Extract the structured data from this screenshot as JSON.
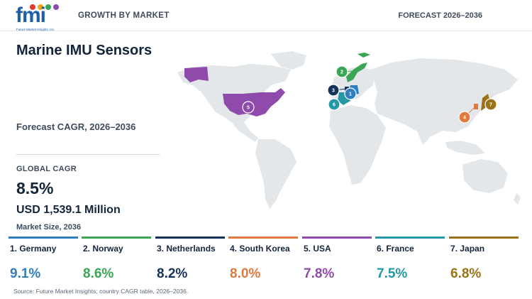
{
  "header": {
    "logo_text": "fmi",
    "logo_tagline": "Future Market Insights, Inc.",
    "section_label": "GROWTH BY MARKET",
    "forecast_label": "FORECAST 2026–2036"
  },
  "report": {
    "title": "Marine IMU Sensors",
    "cagr_label": "Forecast CAGR, 2026–2036",
    "global_label": "GLOBAL CAGR",
    "global_value": "8.5%",
    "market_size": "USD 1,539.1 Million",
    "market_size_label": "Market Size, 2036"
  },
  "colors": {
    "germany": "#2f7fc0",
    "norway": "#3aa655",
    "netherlands": "#15335a",
    "south_korea": "#e07a3c",
    "usa": "#8e4bab",
    "france": "#2498a5",
    "japan": "#9a7318",
    "land": "#e4e7ea"
  },
  "countries": [
    {
      "rank": "1. Germany",
      "pin": "1",
      "value": "9.1%",
      "color_key": "germany"
    },
    {
      "rank": "2. Norway",
      "pin": "2",
      "value": "8.6%",
      "color_key": "norway"
    },
    {
      "rank": "3. Netherlands",
      "pin": "3",
      "value": "8.2%",
      "color_key": "netherlands"
    },
    {
      "rank": "4. South Korea",
      "pin": "4",
      "value": "8.0%",
      "color_key": "south_korea"
    },
    {
      "rank": "5. USA",
      "pin": "5",
      "value": "7.8%",
      "color_key": "usa"
    },
    {
      "rank": "6. France",
      "pin": "6",
      "value": "7.5%",
      "color_key": "france"
    },
    {
      "rank": "7. Japan",
      "pin": "7",
      "value": "6.8%",
      "color_key": "japan"
    }
  ],
  "source": "Source: Future Market Insights; country CAGR table, 2026–2036."
}
